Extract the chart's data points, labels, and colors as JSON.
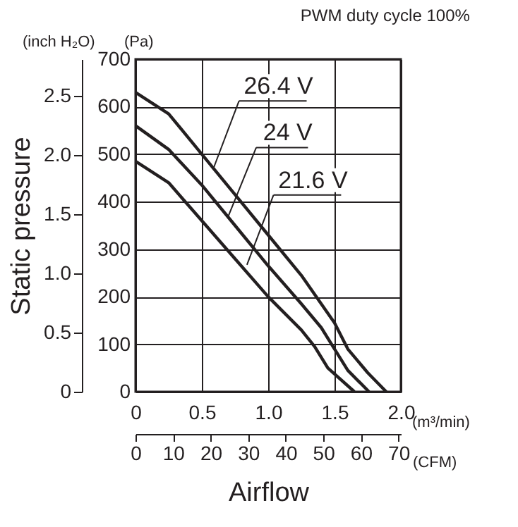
{
  "chart_data": {
    "type": "line",
    "title": "PWM duty cycle 100%",
    "xlabel": "Airflow",
    "y2label": "Static pressure",
    "x2label": "(CFM)",
    "annotations": [
      "(Pa)",
      "(m³/min)",
      "(inch H₂O)"
    ],
    "xlim": [
      0,
      2.0
    ],
    "xticks": [
      {
        "value": 0,
        "label": "0"
      },
      0.5,
      {
        "value": 1,
        "label": "1.0"
      },
      1.5,
      {
        "value": 2,
        "label": "2.0"
      }
    ],
    "ylim": [
      0,
      700
    ],
    "yticks": [
      0,
      100,
      200,
      300,
      400,
      500,
      600,
      700
    ],
    "y2lim": [
      0,
      2.81
    ],
    "y2ticks": [
      {
        "value": 0,
        "label": "0"
      },
      0.5,
      {
        "value": 1,
        "label": "1.0"
      },
      1.5,
      {
        "value": 2,
        "label": "2.0"
      },
      2.5
    ],
    "x2lim": [
      0,
      70.63
    ],
    "x2ticks": [
      0,
      10,
      20,
      30,
      40,
      50,
      60,
      70
    ],
    "grid": true,
    "legend": "top right",
    "marker": "none",
    "line_style": "solid",
    "series": [
      {
        "name": "26.4 V",
        "color": "#231f20",
        "x": [
          0,
          0.25,
          0.5,
          0.75,
          1.0,
          1.25,
          1.4,
          1.5,
          1.6,
          1.75,
          1.89
        ],
        "values": [
          630,
          585,
          500,
          415,
          330,
          245,
          185,
          145,
          90,
          40,
          0
        ]
      },
      {
        "name": "24 V",
        "color": "#231f20",
        "x": [
          0,
          0.25,
          0.5,
          0.75,
          1.0,
          1.25,
          1.4,
          1.5,
          1.6,
          1.76
        ],
        "values": [
          560,
          510,
          435,
          350,
          265,
          185,
          135,
          90,
          45,
          0
        ]
      },
      {
        "name": "21.6 V",
        "color": "#231f20",
        "x": [
          0,
          0.25,
          0.5,
          0.75,
          1.0,
          1.25,
          1.35,
          1.45,
          1.65
        ],
        "values": [
          485,
          440,
          360,
          280,
          200,
          130,
          95,
          50,
          0
        ]
      }
    ]
  }
}
